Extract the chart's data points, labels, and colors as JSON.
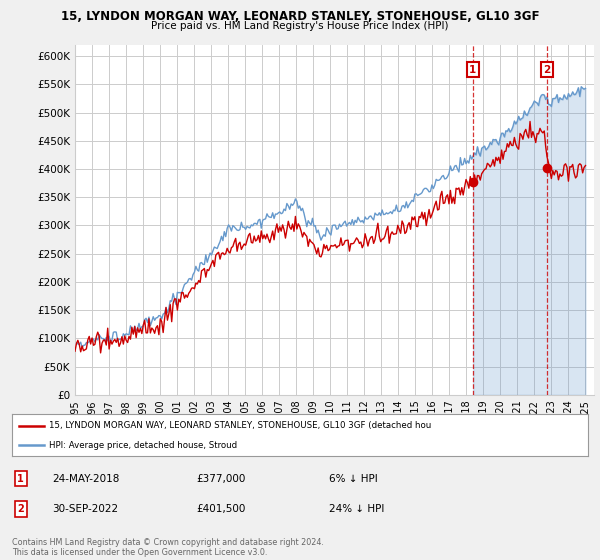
{
  "title": "15, LYNDON MORGAN WAY, LEONARD STANLEY, STONEHOUSE, GL10 3GF",
  "subtitle": "Price paid vs. HM Land Registry's House Price Index (HPI)",
  "ylim": [
    0,
    620000
  ],
  "yticks": [
    0,
    50000,
    100000,
    150000,
    200000,
    250000,
    300000,
    350000,
    400000,
    450000,
    500000,
    550000,
    600000
  ],
  "ytick_labels": [
    "£0",
    "£50K",
    "£100K",
    "£150K",
    "£200K",
    "£250K",
    "£300K",
    "£350K",
    "£400K",
    "£450K",
    "£500K",
    "£550K",
    "£600K"
  ],
  "bg_color": "#f0f0f0",
  "plot_bg_color": "#ffffff",
  "grid_color": "#cccccc",
  "red_color": "#cc0000",
  "blue_color": "#6699cc",
  "blue_fill_color": "#ddeeff",
  "marker1_date_x": 2018.38,
  "marker1_y": 377000,
  "marker1_label": "1",
  "marker1_date_str": "24-MAY-2018",
  "marker1_price_str": "£377,000",
  "marker1_pct_str": "6% ↓ HPI",
  "marker2_date_x": 2022.75,
  "marker2_y": 401500,
  "marker2_label": "2",
  "marker2_date_str": "30-SEP-2022",
  "marker2_price_str": "£401,500",
  "marker2_pct_str": "24% ↓ HPI",
  "legend_line1": "15, LYNDON MORGAN WAY, LEONARD STANLEY, STONEHOUSE, GL10 3GF (detached hou",
  "legend_line2": "HPI: Average price, detached house, Stroud",
  "footnote": "Contains HM Land Registry data © Crown copyright and database right 2024.\nThis data is licensed under the Open Government Licence v3.0.",
  "xlim_start": 1995,
  "xlim_end": 2025.5
}
